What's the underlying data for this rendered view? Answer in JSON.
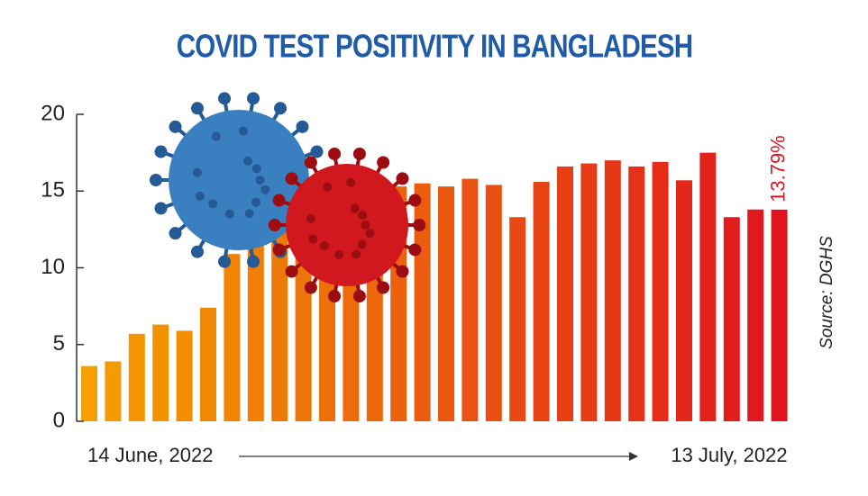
{
  "chart_data": {
    "type": "bar",
    "title": "COVID TEST POSITIVITY IN BANGLADESH",
    "source": "Source: DGHS",
    "categories": [
      "14 June, 2022",
      null,
      null,
      null,
      null,
      null,
      null,
      null,
      null,
      null,
      null,
      null,
      null,
      null,
      null,
      null,
      null,
      null,
      null,
      null,
      null,
      null,
      null,
      null,
      null,
      null,
      null,
      null,
      null,
      "13 July, 2022"
    ],
    "values": [
      3.6,
      3.9,
      5.7,
      6.3,
      5.9,
      7.4,
      10.9,
      12.3,
      13.1,
      14.0,
      14.6,
      14.2,
      15.0,
      15.3,
      15.5,
      15.3,
      15.8,
      15.4,
      13.3,
      15.6,
      16.6,
      16.8,
      17.0,
      16.6,
      16.9,
      15.7,
      17.5,
      13.3,
      13.8,
      13.79
    ],
    "value_labels": [
      null,
      null,
      null,
      null,
      null,
      null,
      null,
      null,
      null,
      null,
      null,
      null,
      null,
      null,
      null,
      null,
      null,
      null,
      null,
      null,
      null,
      null,
      null,
      null,
      null,
      null,
      null,
      null,
      null,
      "13.79%"
    ],
    "gradient": [
      "#f5a000",
      "#e0141e"
    ],
    "ylim": [
      0,
      20
    ],
    "yticks": [
      0,
      5,
      10,
      15,
      20
    ],
    "grid": false
  }
}
